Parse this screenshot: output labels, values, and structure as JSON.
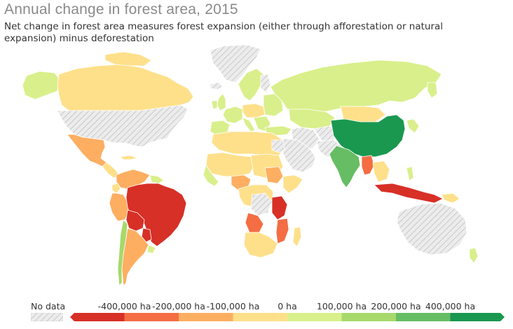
{
  "title": "Annual change in forest area, 2015",
  "subtitle": "Net change in forest area measures forest expansion (either through afforestation or natural expansion) minus deforestation",
  "legend": {
    "no_data_label": "No data",
    "ticks": [
      "-400,000 ha",
      "-200,000 ha",
      "-100,000 ha",
      "0 ha",
      "100,000 ha",
      "200,000 ha",
      "400,000 ha"
    ],
    "bins": [
      {
        "color": "#d73027"
      },
      {
        "color": "#f46d43"
      },
      {
        "color": "#fdae61"
      },
      {
        "color": "#fee08b"
      },
      {
        "color": "#d9ef8b"
      },
      {
        "color": "#a6d96a"
      },
      {
        "color": "#66bd63"
      },
      {
        "color": "#1a9850"
      }
    ]
  },
  "colors": {
    "no_data": "#e9e9e9",
    "no_data_hatch": "#b9b9b9",
    "border": "#ffffff"
  }
}
